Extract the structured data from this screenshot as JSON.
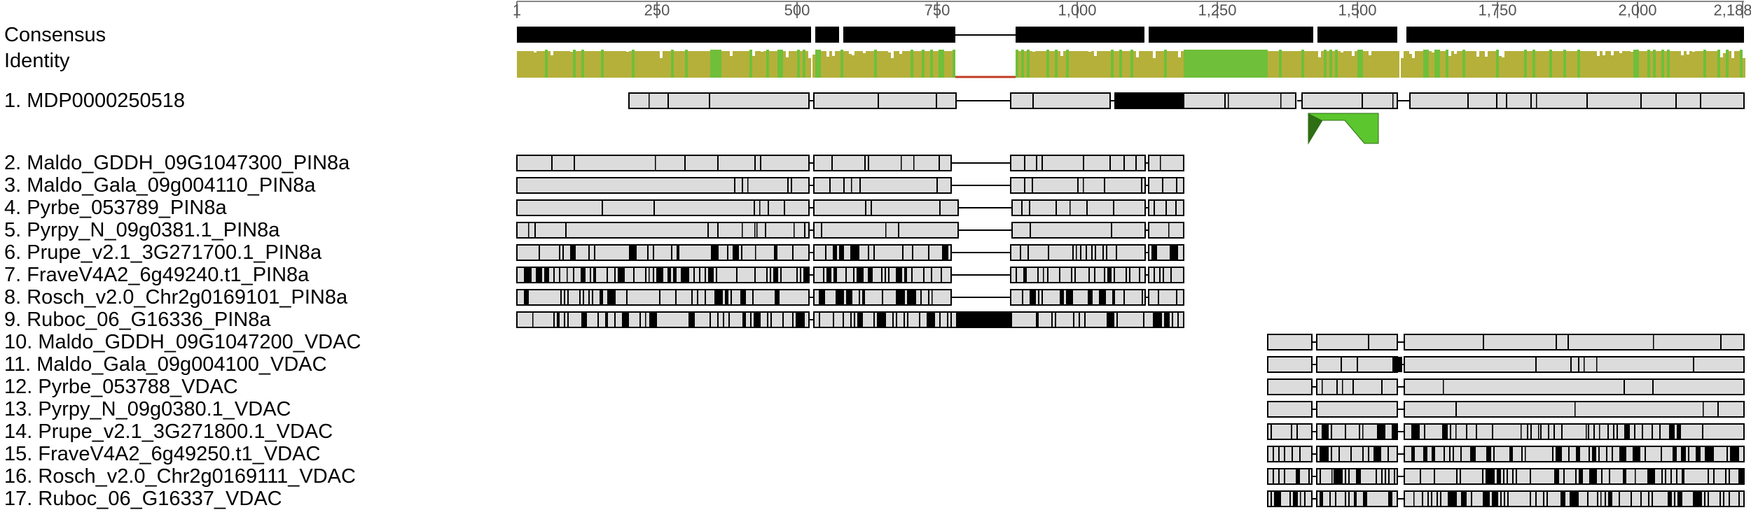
{
  "ruler": {
    "ticks": [
      "1",
      "250",
      "500",
      "750",
      "1,000",
      "1,250",
      "1,500",
      "1,750",
      "2,000",
      "2,188"
    ]
  },
  "tracks": {
    "consensus": "Consensus",
    "identity": "Identity"
  },
  "colors": {
    "identity_high": "#6fbf3a",
    "identity_mid": "#b5b03a",
    "identity_low": "#c23b22",
    "block_fill": "#dcdcdc",
    "variant": "#000000",
    "annotation": "#5cc62e"
  },
  "sequences": [
    {
      "label": "1. MDP0000250518"
    },
    {
      "label": "2. Maldo_GDDH_09G1047300_PIN8a"
    },
    {
      "label": "3. Maldo_Gala_09g004110_PIN8a"
    },
    {
      "label": "4. Pyrbe_053789_PIN8a"
    },
    {
      "label": "5. Pyrpy_N_09g0381.1_PIN8a"
    },
    {
      "label": "6. Prupe_v2.1_3G271700.1_PIN8a"
    },
    {
      "label": "7. FraveV4A2_6g49240.t1_PIN8a"
    },
    {
      "label": "8. Rosch_v2.0_Chr2g0169101_PIN8a"
    },
    {
      "label": "9. Ruboc_06_G16336_PIN8a"
    },
    {
      "label": "10. Maldo_GDDH_09G1047200_VDAC"
    },
    {
      "label": "11. Maldo_Gala_09g004100_VDAC"
    },
    {
      "label": "12. Pyrbe_053788_VDAC"
    },
    {
      "label": "13. Pyrpy_N_09g0380.1_VDAC"
    },
    {
      "label": "14. Prupe_v2.1_3G271800.1_VDAC"
    },
    {
      "label": "15. FraveV4A2_6g49250.t1_VDAC"
    },
    {
      "label": "16. Rosch_v2.0_Chr2g0169111_VDAC"
    },
    {
      "label": "17. Ruboc_06_G16337_VDAC"
    }
  ]
}
